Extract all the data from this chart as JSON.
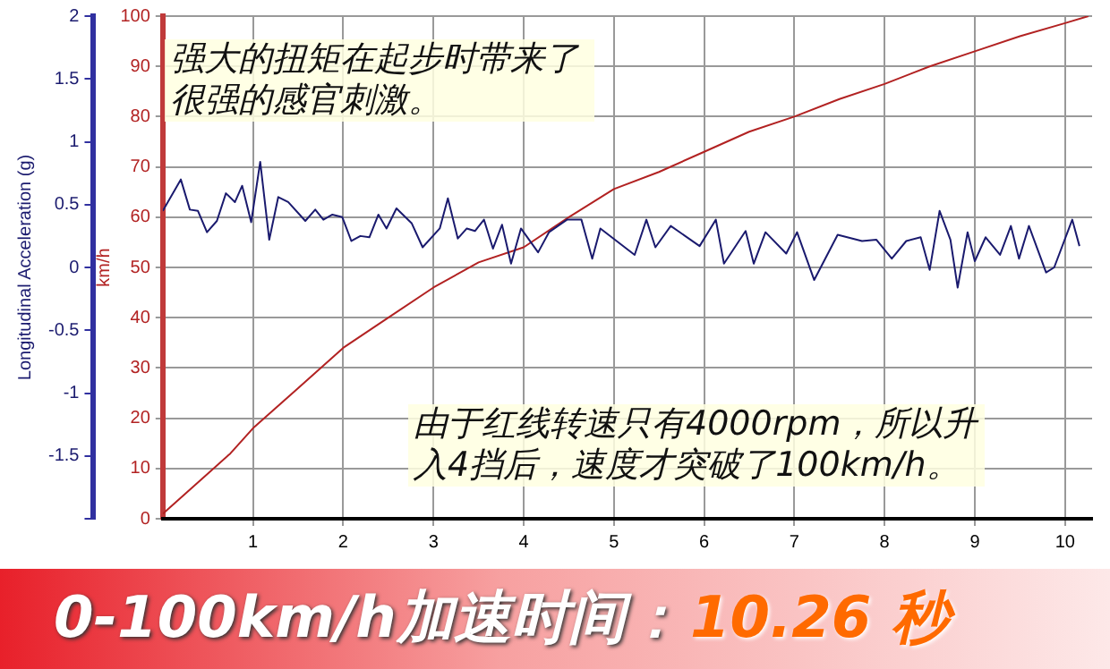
{
  "chart_data": {
    "type": "line",
    "title": "0-100km/h加速时间：",
    "subtitle": "10.26 秒",
    "ylabel": "Longitudinal Acceleration (g)",
    "y2label": "km/h",
    "annotations": [
      "强大的扭矩在起步时带来了很强的感官刺激。",
      "由于红线转速只有4000rpm，所以升入4挡后，速度才突破了100km/h。"
    ],
    "xlim": [
      0,
      10.3
    ],
    "xticks": [
      1,
      2,
      3,
      4,
      5,
      6,
      7,
      8,
      9,
      10
    ],
    "ylim": [
      -2,
      2
    ],
    "yticks": [
      {
        "value": -2,
        "label": null
      },
      -1.5,
      -1,
      -0.5,
      0,
      0.5,
      1,
      1.5,
      2
    ],
    "y2lim": [
      0,
      100
    ],
    "y2ticks": [
      0,
      10,
      20,
      30,
      40,
      50,
      60,
      70,
      80,
      90,
      100
    ],
    "grid": true,
    "legend": false,
    "marker": "none",
    "line_style": "solid",
    "series": [
      {
        "color": "#1a1a6e",
        "x": [
          0,
          0.2,
          0.3,
          0.39,
          0.49,
          0.6,
          0.7,
          0.8,
          0.88,
          0.98,
          1.08,
          1.18,
          1.28,
          1.39,
          1.58,
          1.69,
          1.78,
          1.88,
          1.99,
          2.09,
          2.19,
          2.29,
          2.39,
          2.48,
          2.59,
          2.76,
          2.88,
          3.07,
          3.16,
          3.27,
          3.37,
          3.46,
          3.56,
          3.66,
          3.76,
          3.86,
          3.97,
          4.16,
          4.28,
          4.48,
          4.64,
          4.76,
          4.85,
          5.23,
          5.36,
          5.46,
          5.63,
          5.95,
          6.13,
          6.22,
          6.46,
          6.55,
          6.68,
          6.91,
          7.03,
          7.22,
          7.48,
          7.75,
          7.91,
          8.08,
          8.24,
          8.4,
          8.5,
          8.61,
          8.73,
          8.81,
          8.92,
          9.0,
          9.12,
          9.28,
          9.4,
          9.49,
          9.6,
          9.79,
          9.88,
          10.08,
          10.16
        ],
        "values": [
          0.45,
          0.7,
          0.46,
          0.45,
          0.28,
          0.37,
          0.59,
          0.52,
          0.65,
          0.36,
          0.84,
          0.22,
          0.56,
          0.52,
          0.37,
          0.46,
          0.38,
          0.42,
          0.4,
          0.21,
          0.25,
          0.24,
          0.42,
          0.31,
          0.47,
          0.35,
          0.16,
          0.31,
          0.55,
          0.23,
          0.31,
          0.29,
          0.38,
          0.15,
          0.34,
          0.03,
          0.31,
          0.12,
          0.28,
          0.38,
          0.38,
          0.07,
          0.31,
          0.1,
          0.38,
          0.16,
          0.33,
          0.17,
          0.38,
          0.03,
          0.29,
          0.03,
          0.28,
          0.11,
          0.28,
          -0.1,
          0.26,
          0.21,
          0.22,
          0.07,
          0.21,
          0.24,
          -0.02,
          0.45,
          0.22,
          -0.16,
          0.28,
          0.05,
          0.24,
          0.1,
          0.33,
          0.07,
          0.33,
          -0.04,
          0,
          0.38,
          0.17
        ]
      },
      {
        "color": "#b22222",
        "axis": "y2",
        "x": [
          0,
          0.25,
          0.5,
          0.75,
          1,
          1.5,
          2,
          2.5,
          3,
          3.5,
          4,
          4.5,
          5,
          5.5,
          6,
          6.5,
          7,
          7.5,
          8,
          8.5,
          9,
          9.5,
          10,
          10.26
        ],
        "values": [
          1,
          5,
          9,
          13,
          18,
          26,
          34,
          40,
          46,
          51,
          54,
          60,
          65.6,
          69,
          73,
          77,
          80,
          83.5,
          86.5,
          90,
          93,
          96,
          98.6,
          100
        ]
      }
    ]
  }
}
